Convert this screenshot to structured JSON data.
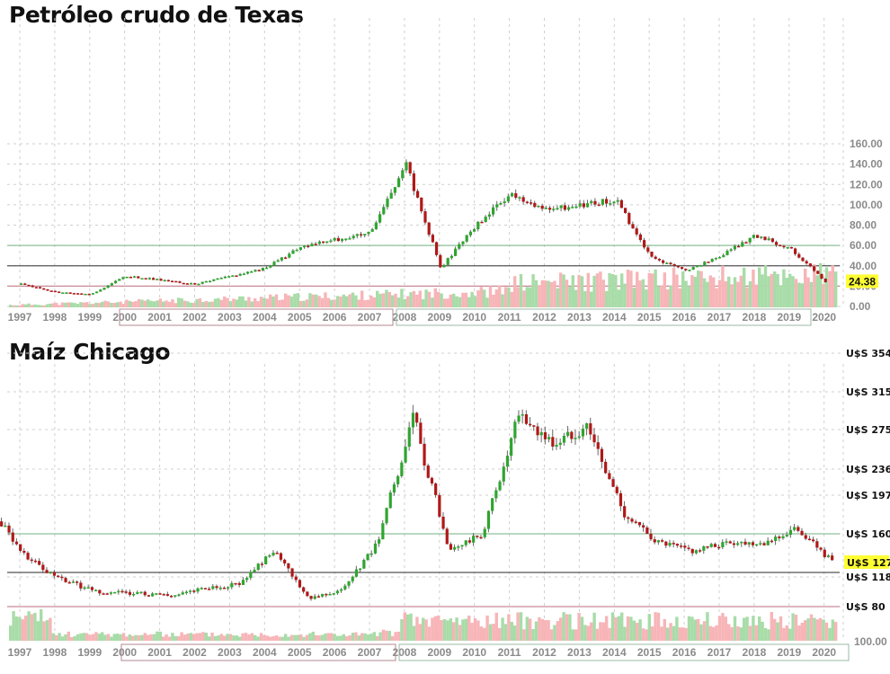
{
  "chart_data": [
    {
      "type": "candlestick",
      "title": "Petróleo crudo de Texas",
      "x_tick_labels": [
        "1997",
        "1998",
        "1999",
        "2000",
        "2001",
        "2002",
        "2003",
        "2004",
        "2005",
        "2006",
        "2007",
        "2008",
        "2009",
        "2010",
        "2011",
        "2012",
        "2013",
        "2014",
        "2015",
        "2016",
        "2017",
        "2018",
        "2019",
        "2020"
      ],
      "y_tick_labels": [
        "160.00",
        "140.00",
        "120.00",
        "100.00",
        "80.00",
        "60.00",
        "40.00",
        "20.00",
        "0.00"
      ],
      "ylim": [
        0,
        160
      ],
      "last_price_label": "24.38",
      "horizontal_lines": [
        {
          "value": 60,
          "color": "#8fbf9a"
        },
        {
          "value": 40,
          "color": "#555555"
        },
        {
          "value": 20,
          "color": "#c98a96"
        }
      ],
      "year_groups": [
        {
          "from": "2000",
          "to": "2007",
          "border": "#b08a90"
        },
        {
          "from": "2008",
          "to": "2019",
          "border": "#9bb8a6"
        }
      ],
      "approx_yearly_path": [
        {
          "year": 1997,
          "value": 22
        },
        {
          "year": 1998,
          "value": 14
        },
        {
          "year": 1999,
          "value": 12
        },
        {
          "year": 2000,
          "value": 30
        },
        {
          "year": 2001,
          "value": 26
        },
        {
          "year": 2002,
          "value": 22
        },
        {
          "year": 2003,
          "value": 30
        },
        {
          "year": 2004,
          "value": 38
        },
        {
          "year": 2005,
          "value": 58
        },
        {
          "year": 2006,
          "value": 66
        },
        {
          "year": 2007,
          "value": 72
        },
        {
          "year": 2008,
          "value": 140
        },
        {
          "year": 2009,
          "value": 38
        },
        {
          "year": 2010,
          "value": 80
        },
        {
          "year": 2011,
          "value": 110
        },
        {
          "year": 2012,
          "value": 95
        },
        {
          "year": 2013,
          "value": 100
        },
        {
          "year": 2014,
          "value": 105
        },
        {
          "year": 2015,
          "value": 48
        },
        {
          "year": 2016,
          "value": 35
        },
        {
          "year": 2017,
          "value": 50
        },
        {
          "year": 2018,
          "value": 70
        },
        {
          "year": 2019,
          "value": 57
        },
        {
          "year": 2020,
          "value": 24.38
        }
      ],
      "colors": {
        "up": "#2fa52f",
        "down": "#b01818",
        "vol_up": "#a8dca8",
        "vol_down": "#f7b5b8",
        "grid": "#cfcfcf",
        "highlight": "#ffff33"
      }
    },
    {
      "type": "candlestick",
      "title": "Maíz Chicago",
      "x_tick_labels": [
        "1997",
        "1998",
        "1999",
        "2000",
        "2001",
        "2002",
        "2003",
        "2004",
        "2005",
        "2006",
        "2007",
        "2008",
        "2009",
        "2010",
        "2011",
        "2012",
        "2013",
        "2014",
        "2015",
        "2016",
        "2017",
        "2018",
        "2019",
        "2020"
      ],
      "y_tick_labels": [
        "U$S 354",
        "U$S 315",
        "U$S 275",
        "U$S 236",
        "U$S 197",
        "U$S 160",
        "U$S 118",
        "U$S 80"
      ],
      "volume_axis_label": "100.00",
      "last_price_label": "U$S 127",
      "horizontal_lines": [
        {
          "value": 160,
          "color": "#8fbf9a"
        },
        {
          "value": 118,
          "color": "#555555"
        },
        {
          "value": 80,
          "color": "#c98a96"
        }
      ],
      "year_groups": [
        {
          "from": "2000",
          "to": "2007",
          "border": "#b08a90"
        },
        {
          "from": "2008",
          "to": "2020",
          "border": "#9bb8a6"
        }
      ],
      "approx_yearly_path": [
        {
          "year": 1996,
          "value": 180
        },
        {
          "year": 1997,
          "value": 130
        },
        {
          "year": 1998,
          "value": 110
        },
        {
          "year": 1999,
          "value": 95
        },
        {
          "year": 2000,
          "value": 95
        },
        {
          "year": 2001,
          "value": 92
        },
        {
          "year": 2002,
          "value": 100
        },
        {
          "year": 2003,
          "value": 105
        },
        {
          "year": 2004,
          "value": 140
        },
        {
          "year": 2005,
          "value": 90
        },
        {
          "year": 2006,
          "value": 100
        },
        {
          "year": 2007,
          "value": 150
        },
        {
          "year": 2008,
          "value": 290
        },
        {
          "year": 2009,
          "value": 140
        },
        {
          "year": 2010,
          "value": 160
        },
        {
          "year": 2011,
          "value": 290
        },
        {
          "year": 2012,
          "value": 260
        },
        {
          "year": 2013,
          "value": 280
        },
        {
          "year": 2014,
          "value": 180
        },
        {
          "year": 2015,
          "value": 150
        },
        {
          "year": 2016,
          "value": 140
        },
        {
          "year": 2017,
          "value": 150
        },
        {
          "year": 2018,
          "value": 150
        },
        {
          "year": 2019,
          "value": 165
        },
        {
          "year": 2020,
          "value": 127
        }
      ],
      "colors": {
        "up": "#2fa52f",
        "down": "#b01818",
        "vol_up": "#a8dca8",
        "vol_down": "#f7b5b8",
        "grid": "#cfcfcf",
        "highlight": "#ffff33"
      }
    }
  ]
}
